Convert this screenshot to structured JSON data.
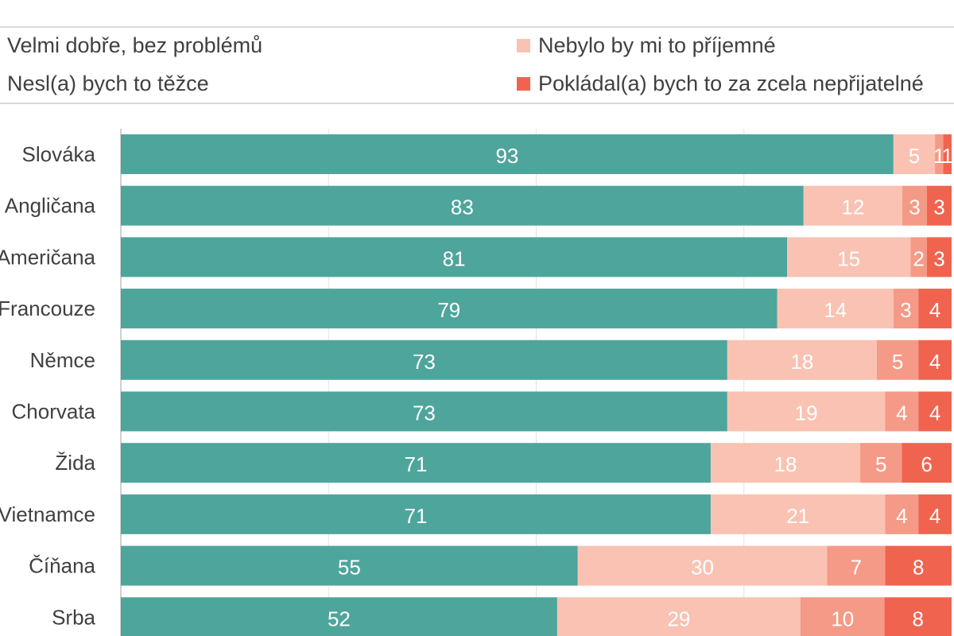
{
  "chart_data": {
    "type": "bar",
    "orientation": "horizontal",
    "stacked": true,
    "normalized": true,
    "categories": [
      "Slováka",
      "Angličana",
      "Američana",
      "Francouze",
      "Němce",
      "Chorvata",
      "Žida",
      "Vietnamce",
      "Číňana",
      "Srba"
    ],
    "series": [
      {
        "name": "Velmi dobře, bez problémů",
        "color": "#4ea59c",
        "values": [
          93,
          83,
          81,
          79,
          73,
          73,
          71,
          71,
          55,
          52
        ]
      },
      {
        "name": "Nebylo by mi to příjemné",
        "color": "#f9c2b3",
        "values": [
          5,
          12,
          15,
          14,
          18,
          19,
          18,
          21,
          30,
          29
        ]
      },
      {
        "name": "Nesl(a) bych to těžce",
        "color": "#f59a86",
        "values": [
          1,
          3,
          2,
          3,
          5,
          4,
          5,
          4,
          7,
          10
        ]
      },
      {
        "name": "Pokládal(a) bych to za zcela nepřijatelné",
        "color": "#f0644f",
        "values": [
          1,
          3,
          3,
          4,
          4,
          4,
          6,
          4,
          8,
          8
        ]
      }
    ],
    "xlim": [
      0,
      100
    ],
    "grid": true,
    "legend_position": "top",
    "data_labels": true
  }
}
